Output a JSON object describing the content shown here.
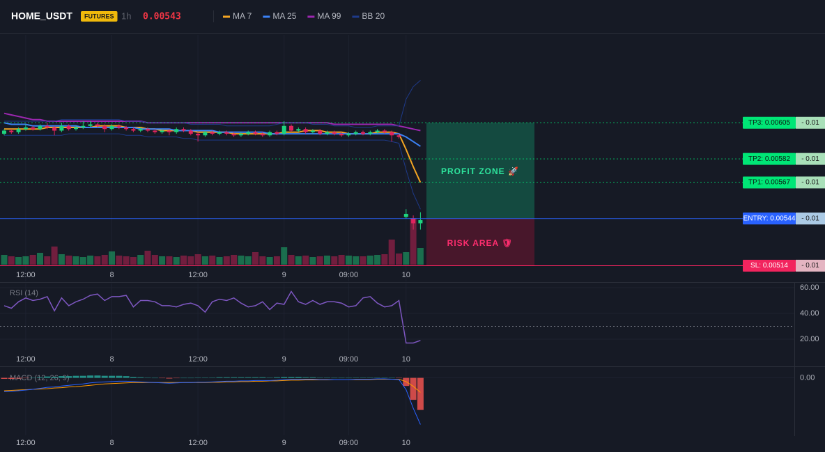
{
  "chart_data": [
    {
      "type": "candlestick",
      "title": "HOME_USDT",
      "badge": "FUTURES",
      "interval": "1h",
      "price": 0.00543,
      "categories": [
        null,
        null,
        null,
        "12:00",
        null,
        null,
        null,
        null,
        null,
        null,
        null,
        null,
        null,
        null,
        null,
        "8",
        null,
        null,
        null,
        null,
        null,
        null,
        null,
        null,
        null,
        null,
        null,
        "12:00",
        null,
        null,
        null,
        null,
        null,
        null,
        null,
        null,
        null,
        null,
        null,
        "9",
        null,
        null,
        null,
        null,
        null,
        null,
        null,
        null,
        "09:00",
        null,
        null,
        null,
        null,
        null,
        null,
        null,
        "10",
        null,
        null
      ],
      "open": [
        0.00598,
        0.006,
        0.00599,
        0.00601,
        0.00602,
        0.00601,
        0.00603,
        0.00602,
        0.006,
        0.00603,
        0.00601,
        0.00602,
        0.00603,
        0.00604,
        0.00603,
        0.00601,
        0.00603,
        0.00602,
        0.00601,
        0.006,
        0.00601,
        0.006,
        0.00599,
        0.006,
        0.00599,
        0.00601,
        0.006,
        0.00598,
        0.00597,
        0.00599,
        0.00598,
        0.00599,
        0.00598,
        0.00597,
        0.00598,
        0.00599,
        0.00598,
        0.00597,
        0.00599,
        0.00598,
        0.00603,
        0.006,
        0.00601,
        0.00599,
        0.006,
        0.00598,
        0.00599,
        0.00598,
        0.00597,
        0.00598,
        0.00599,
        0.00598,
        0.00599,
        0.006,
        0.00599,
        0.00597,
        0.00545,
        0.00544,
        0.00541
      ],
      "high": [
        0.00601,
        0.00601,
        0.00602,
        0.00604,
        0.00603,
        0.00604,
        0.00605,
        0.00603,
        0.00605,
        0.00604,
        0.00603,
        0.00606,
        0.00606,
        0.00605,
        0.00604,
        0.00604,
        0.00604,
        0.00603,
        0.00602,
        0.00602,
        0.00602,
        0.00601,
        0.00601,
        0.00601,
        0.00602,
        0.00602,
        0.00601,
        0.00599,
        0.006,
        0.006,
        0.006,
        0.006,
        0.00599,
        0.00599,
        0.006,
        0.006,
        0.00599,
        0.006,
        0.006,
        0.00606,
        0.00604,
        0.00602,
        0.00602,
        0.00601,
        0.00601,
        0.006,
        0.006,
        0.00599,
        0.00599,
        0.006,
        0.006,
        0.006,
        0.00601,
        0.00601,
        0.006,
        0.00598,
        0.0055,
        0.00546,
        0.00548
      ],
      "low": [
        0.00597,
        0.00598,
        0.00598,
        0.006,
        0.006,
        0.006,
        0.00601,
        0.00597,
        0.00599,
        0.006,
        0.006,
        0.00601,
        0.00602,
        0.00602,
        0.00599,
        0.006,
        0.00601,
        0.006,
        0.00599,
        0.00599,
        0.00599,
        0.00598,
        0.00598,
        0.00597,
        0.00598,
        0.00599,
        0.00597,
        0.00593,
        0.00596,
        0.00597,
        0.00597,
        0.00597,
        0.00596,
        0.00596,
        0.00597,
        0.00597,
        0.00596,
        0.00596,
        0.00597,
        0.00597,
        0.00599,
        0.00599,
        0.00598,
        0.00598,
        0.00597,
        0.00597,
        0.00597,
        0.00596,
        0.00596,
        0.00597,
        0.00597,
        0.00597,
        0.00598,
        0.00598,
        0.00593,
        0.00595,
        0.00544,
        0.00537,
        0.00537
      ],
      "close": [
        0.006,
        0.00599,
        0.00601,
        0.00602,
        0.00601,
        0.00603,
        0.00602,
        0.006,
        0.00603,
        0.00601,
        0.00602,
        0.00603,
        0.00604,
        0.00603,
        0.00601,
        0.00603,
        0.00602,
        0.00601,
        0.006,
        0.00601,
        0.006,
        0.00599,
        0.006,
        0.00599,
        0.00601,
        0.006,
        0.00598,
        0.00597,
        0.00599,
        0.00598,
        0.00599,
        0.00598,
        0.00597,
        0.00598,
        0.00599,
        0.00598,
        0.00597,
        0.00599,
        0.00598,
        0.00603,
        0.006,
        0.00601,
        0.00599,
        0.006,
        0.00598,
        0.00599,
        0.00598,
        0.00597,
        0.00598,
        0.00599,
        0.00598,
        0.00599,
        0.006,
        0.00599,
        0.00597,
        0.00596,
        0.00547,
        0.00541,
        0.00543
      ],
      "up_color": "#1ed47f",
      "down_color": "#e0245e",
      "ylim": [
        0.00504,
        0.00661
      ],
      "overlays": [
        {
          "name": "MA 7",
          "color": "#f5a623",
          "values": [
            0.00601,
            0.00601,
            0.00601,
            0.00601,
            0.00601,
            0.00601,
            0.00602,
            0.00602,
            0.00602,
            0.00602,
            0.00602,
            0.00602,
            0.00602,
            0.00603,
            0.00603,
            0.00603,
            0.00603,
            0.00602,
            0.00602,
            0.00602,
            0.00601,
            0.00601,
            0.006,
            0.006,
            0.006,
            0.006,
            0.006,
            0.00599,
            0.00599,
            0.00599,
            0.00599,
            0.00599,
            0.00598,
            0.00598,
            0.00598,
            0.00598,
            0.00598,
            0.00598,
            0.00598,
            0.00599,
            0.00599,
            0.00599,
            0.006,
            0.006,
            0.006,
            0.00599,
            0.00599,
            0.00599,
            0.00598,
            0.00598,
            0.00598,
            0.00598,
            0.00599,
            0.00599,
            0.00599,
            0.00598,
            0.00588,
            0.00577,
            0.00567
          ]
        },
        {
          "name": "MA 25",
          "color": "#3b82f6",
          "values": [
            0.00605,
            0.00604,
            0.00604,
            0.00604,
            0.00603,
            0.00603,
            0.00603,
            0.00603,
            0.00603,
            0.00603,
            0.00603,
            0.00602,
            0.00602,
            0.00602,
            0.00602,
            0.00602,
            0.00602,
            0.00602,
            0.00602,
            0.00601,
            0.00601,
            0.00601,
            0.00601,
            0.00601,
            0.006,
            0.006,
            0.006,
            0.006,
            0.006,
            0.006,
            0.00599,
            0.00599,
            0.00599,
            0.00599,
            0.00599,
            0.00599,
            0.00599,
            0.00598,
            0.00598,
            0.00598,
            0.00598,
            0.00598,
            0.00598,
            0.00598,
            0.00598,
            0.00598,
            0.00598,
            0.00598,
            0.00598,
            0.00598,
            0.00598,
            0.00598,
            0.00598,
            0.00598,
            0.00598,
            0.00598,
            0.00596,
            0.00593,
            0.0059
          ]
        },
        {
          "name": "MA 99",
          "color": "#9c27b0",
          "values": [
            0.00611,
            0.0061,
            0.00609,
            0.00608,
            0.00607,
            0.00607,
            0.00606,
            0.00606,
            0.00606,
            0.00606,
            0.00606,
            0.00606,
            0.00606,
            0.00606,
            0.00606,
            0.00606,
            0.00606,
            0.00606,
            0.00606,
            0.00606,
            0.00605,
            0.00605,
            0.00605,
            0.00605,
            0.00605,
            0.00605,
            0.00605,
            0.00605,
            0.00605,
            0.00605,
            0.00605,
            0.00605,
            0.00605,
            0.00605,
            0.00605,
            0.00605,
            0.00605,
            0.00605,
            0.00605,
            0.00605,
            0.00605,
            0.00605,
            0.00605,
            0.00605,
            0.00605,
            0.00605,
            0.00604,
            0.00604,
            0.00604,
            0.00604,
            0.00604,
            0.00604,
            0.00604,
            0.00604,
            0.00604,
            0.00603,
            0.00602,
            0.00601,
            0.006
          ]
        },
        {
          "name": "BB 20",
          "color": "#1e3a8a",
          "values": [
            0.00606,
            0.00606,
            0.00606,
            0.00606,
            0.00606,
            0.00606,
            0.00606,
            0.00606,
            0.00607,
            0.00607,
            0.00607,
            0.00607,
            0.00607,
            0.00607,
            0.00607,
            0.00607,
            0.00607,
            0.00606,
            0.00606,
            0.00606,
            0.00605,
            0.00605,
            0.00605,
            0.00605,
            0.00605,
            0.00605,
            0.00604,
            0.00604,
            0.00604,
            0.00604,
            0.00604,
            0.00603,
            0.00603,
            0.00603,
            0.00603,
            0.00603,
            0.00603,
            0.00603,
            0.00604,
            0.00605,
            0.00605,
            0.00605,
            0.00605,
            0.00604,
            0.00604,
            0.00604,
            0.00603,
            0.00603,
            0.00603,
            0.00602,
            0.00602,
            0.00602,
            0.00603,
            0.00603,
            0.00603,
            0.00603,
            0.0062,
            0.00628,
            0.00632
          ],
          "lower": [
            0.00597,
            0.00597,
            0.00597,
            0.00597,
            0.00597,
            0.00597,
            0.00597,
            0.00597,
            0.00597,
            0.00598,
            0.00598,
            0.00598,
            0.00598,
            0.00598,
            0.00598,
            0.00598,
            0.00598,
            0.00597,
            0.00597,
            0.00597,
            0.00596,
            0.00596,
            0.00596,
            0.00596,
            0.00596,
            0.00595,
            0.00595,
            0.00594,
            0.00594,
            0.00594,
            0.00594,
            0.00594,
            0.00594,
            0.00594,
            0.00594,
            0.00594,
            0.00594,
            0.00594,
            0.00594,
            0.00594,
            0.00594,
            0.00594,
            0.00594,
            0.00594,
            0.00594,
            0.00594,
            0.00594,
            0.00594,
            0.00594,
            0.00594,
            0.00594,
            0.00594,
            0.00594,
            0.00594,
            0.00593,
            0.00592,
            0.00575,
            0.0056,
            0.0055
          ]
        }
      ],
      "volume": {
        "ylim": [
          0,
          100
        ],
        "values": [
          14,
          12,
          11,
          12,
          14,
          17,
          12,
          26,
          15,
          13,
          12,
          11,
          13,
          12,
          14,
          19,
          13,
          12,
          11,
          14,
          20,
          14,
          12,
          12,
          11,
          13,
          12,
          15,
          12,
          13,
          11,
          12,
          14,
          13,
          12,
          18,
          12,
          11,
          12,
          25,
          14,
          12,
          13,
          11,
          12,
          13,
          12,
          14,
          13,
          12,
          12,
          13,
          14,
          15,
          36,
          16,
          18,
          67,
          24
        ]
      },
      "levels": [
        {
          "label": "TP3: 0.00605",
          "value": 0.00605,
          "qty": "- 0.01",
          "color": "#00e676",
          "qty_color": "#b9f6ca",
          "text_color": "#0b1a12",
          "style": "dotted"
        },
        {
          "label": "TP2: 0.00582",
          "value": 0.00582,
          "qty": "- 0.01",
          "color": "#00e676",
          "qty_color": "#b9f6ca",
          "text_color": "#0b1a12",
          "style": "dotted"
        },
        {
          "label": "TP1: 0.00567",
          "value": 0.00567,
          "qty": "- 0.01",
          "color": "#00e676",
          "qty_color": "#b9f6ca",
          "text_color": "#0b1a12",
          "style": "dotted"
        },
        {
          "label": "ENTRY: 0.00544",
          "value": 0.00544,
          "qty": "- 0.01",
          "color": "#2962ff",
          "qty_color": "#bbdefb",
          "text_color": "#ffffff",
          "style": "solid"
        },
        {
          "label": "SL: 0.00514",
          "value": 0.00514,
          "qty": "- 0.01",
          "color": "#f2245e",
          "qty_color": "#fbc7d4",
          "text_color": "#ffffff",
          "style": "solid"
        }
      ],
      "zones": [
        {
          "label": "PROFIT ZONE 🚀",
          "color": "#10b981",
          "text_color": "#2ee59d"
        },
        {
          "label": "RISK AREA 🛡",
          "color": "#be123c",
          "text_color": "#ff2d6f"
        }
      ]
    },
    {
      "type": "line",
      "title": "RSI (14)",
      "color": "#7e57c2",
      "values": [
        46,
        44,
        49,
        52,
        50,
        51,
        53,
        42,
        52,
        46,
        49,
        51,
        54,
        55,
        50,
        53,
        53,
        54,
        45,
        50,
        50,
        49,
        46,
        46,
        45,
        47,
        48,
        46,
        41,
        49,
        51,
        50,
        52,
        48,
        45,
        46,
        49,
        43,
        48,
        47,
        57,
        49,
        47,
        50,
        47,
        49,
        49,
        48,
        45,
        46,
        52,
        53,
        48,
        45,
        46,
        50,
        17,
        17,
        19
      ],
      "ylim": [
        11.35,
        63.24
      ],
      "yticks": [
        {
          "value": 60,
          "label": "60.00"
        },
        {
          "value": 40,
          "label": "40.00"
        },
        {
          "value": 20,
          "label": "20.00"
        }
      ],
      "reference_lines": [
        30
      ]
    },
    {
      "type": "macd",
      "title": "MACD (12, 26, 9)",
      "ylim": [
        -0.00017,
        3e-05
      ],
      "yticks": [
        {
          "value": 0,
          "label": "0.00"
        }
      ],
      "macd": {
        "color": "#2962ff",
        "values": [
          -4.1e-05,
          -4e-05,
          -3.8e-05,
          -3.6e-05,
          -3.4e-05,
          -3.1e-05,
          -2.8e-05,
          -2.7e-05,
          -2.4e-05,
          -2.2e-05,
          -2e-05,
          -1.8e-05,
          -1.5e-05,
          -1.3e-05,
          -1.2e-05,
          -1.1e-05,
          -1e-05,
          -1e-05,
          -1.1e-05,
          -1.2e-05,
          -1.3e-05,
          -1.4e-05,
          -1.5e-05,
          -1.6e-05,
          -1.5e-05,
          -1.4e-05,
          -1.4e-05,
          -1.3e-05,
          -1.3e-05,
          -1.2e-05,
          -1.1e-05,
          -1e-05,
          -1e-05,
          -9e-06,
          -9e-06,
          -8e-06,
          -8e-06,
          -8e-06,
          -7e-06,
          -5e-06,
          -4e-06,
          -4e-06,
          -4e-06,
          -4e-06,
          -5e-06,
          -5e-06,
          -5e-06,
          -5e-06,
          -5e-06,
          -4e-06,
          -4e-06,
          -4e-06,
          -3e-06,
          -3e-06,
          -4e-06,
          -5e-06,
          -3.5e-05,
          -9e-05,
          -0.000138
        ]
      },
      "signal": {
        "color": "#ff9800",
        "values": [
          -3.8e-05,
          -3.7e-05,
          -3.6e-05,
          -3.5e-05,
          -3.4e-05,
          -3.3e-05,
          -3.2e-05,
          -3e-05,
          -2.9e-05,
          -2.7e-05,
          -2.6e-05,
          -2.4e-05,
          -2.2e-05,
          -2e-05,
          -1.8e-05,
          -1.7e-05,
          -1.6e-05,
          -1.5e-05,
          -1.4e-05,
          -1.4e-05,
          -1.4e-05,
          -1.4e-05,
          -1.4e-05,
          -1.4e-05,
          -1.4e-05,
          -1.4e-05,
          -1.4e-05,
          -1.4e-05,
          -1.4e-05,
          -1.3e-05,
          -1.3e-05,
          -1.2e-05,
          -1.2e-05,
          -1.1e-05,
          -1.1e-05,
          -1e-05,
          -1e-05,
          -9e-06,
          -9e-06,
          -8e-06,
          -7e-06,
          -7e-06,
          -6e-06,
          -6e-06,
          -6e-06,
          -6e-06,
          -5e-06,
          -5e-06,
          -5e-06,
          -5e-06,
          -5e-06,
          -5e-06,
          -4e-06,
          -4e-06,
          -4e-06,
          -4e-06,
          -1.1e-05,
          -2.5e-05,
          -4.3e-05
        ]
      },
      "histogram": {
        "up_color": "#26a69a",
        "down_color": "#ef5350",
        "values": [
          -3e-06,
          -3e-06,
          -2e-06,
          -1e-06,
          0,
          2e-06,
          4e-06,
          3e-06,
          5e-06,
          5e-06,
          6e-06,
          6e-06,
          7e-06,
          7e-06,
          6e-06,
          6e-06,
          6e-06,
          5e-06,
          3e-06,
          2e-06,
          1e-06,
          0,
          -1e-06,
          -2e-06,
          -1e-06,
          0,
          0,
          1e-06,
          1e-06,
          1e-06,
          2e-06,
          2e-06,
          2e-06,
          2e-06,
          2e-06,
          2e-06,
          2e-06,
          1e-06,
          2e-06,
          3e-06,
          3e-06,
          3e-06,
          2e-06,
          2e-06,
          1e-06,
          1e-06,
          0,
          0,
          0,
          1e-06,
          1e-06,
          1e-06,
          1e-06,
          1e-06,
          0,
          -1e-06,
          -2.4e-05,
          -6.5e-05,
          -9.5e-05
        ]
      }
    }
  ]
}
